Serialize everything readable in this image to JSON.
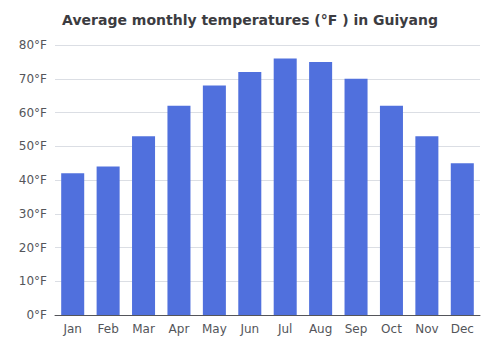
{
  "chart_data": {
    "type": "bar",
    "title": "Average monthly temperatures (°F ) in Guiyang",
    "categories": [
      "Jan",
      "Feb",
      "Mar",
      "Apr",
      "May",
      "Jun",
      "Jul",
      "Aug",
      "Sep",
      "Oct",
      "Nov",
      "Dec"
    ],
    "values": [
      42,
      44,
      53,
      62,
      68,
      72,
      76,
      75,
      70,
      62,
      53,
      45
    ],
    "ylim": [
      0,
      80
    ],
    "yticks": [
      {
        "value": 0,
        "label": "0°F"
      },
      {
        "value": 10,
        "label": "10°F"
      },
      {
        "value": 20,
        "label": "20°F"
      },
      {
        "value": 30,
        "label": "30°F"
      },
      {
        "value": 40,
        "label": "40°F"
      },
      {
        "value": 50,
        "label": "50°F"
      },
      {
        "value": 60,
        "label": "60°F"
      },
      {
        "value": 70,
        "label": "70°F"
      },
      {
        "value": 80,
        "label": "80°F"
      }
    ],
    "grid": true
  }
}
